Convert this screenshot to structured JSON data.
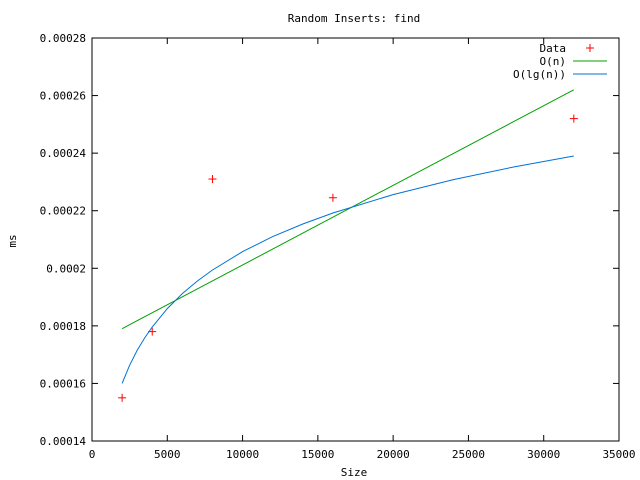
{
  "chart_data": {
    "type": "scatter",
    "title": "Random Inserts: find",
    "xlabel": "Size",
    "ylabel": "ms",
    "xlim": [
      0,
      35000
    ],
    "ylim": [
      0.00014,
      0.00028
    ],
    "x_ticks": [
      0,
      5000,
      10000,
      15000,
      20000,
      25000,
      30000,
      35000
    ],
    "x_tick_labels": [
      "0",
      "5000",
      "10000",
      "15000",
      "20000",
      "25000",
      "30000",
      "35000"
    ],
    "y_ticks": [
      0.00014,
      0.00016,
      0.00018,
      0.0002,
      0.00022,
      0.00024,
      0.00026,
      0.00028
    ],
    "y_tick_labels": [
      "0.00014",
      "0.00016",
      "0.00018",
      "0.0002",
      "0.00022",
      "0.00024",
      "0.00026",
      "0.00028"
    ],
    "grid": false,
    "legend_position": "top-right",
    "series": [
      {
        "name": "Data",
        "kind": "points",
        "color": "#ff0000",
        "x": [
          2000,
          4000,
          8000,
          16000,
          32000
        ],
        "y": [
          0.000155,
          0.000178,
          0.000231,
          0.0002245,
          0.000252
        ]
      },
      {
        "name": "O(n)",
        "kind": "line",
        "color": "#00a000",
        "x": [
          2000,
          32000
        ],
        "y": [
          0.000179,
          0.000262
        ]
      },
      {
        "name": "O(lg(n))",
        "kind": "line",
        "color": "#0072d8",
        "x": [
          2000,
          2500,
          3000,
          3500,
          4000,
          5000,
          6000,
          7000,
          8000,
          10000,
          12000,
          14000,
          16000,
          20000,
          24000,
          28000,
          32000
        ],
        "y": [
          0.00016,
          0.0001663,
          0.0001715,
          0.0001758,
          0.0001796,
          0.000186,
          0.0001912,
          0.0001956,
          0.0001994,
          0.0002058,
          0.000211,
          0.0002154,
          0.0002192,
          0.0002256,
          0.0002308,
          0.0002352,
          0.000239
        ]
      }
    ]
  }
}
